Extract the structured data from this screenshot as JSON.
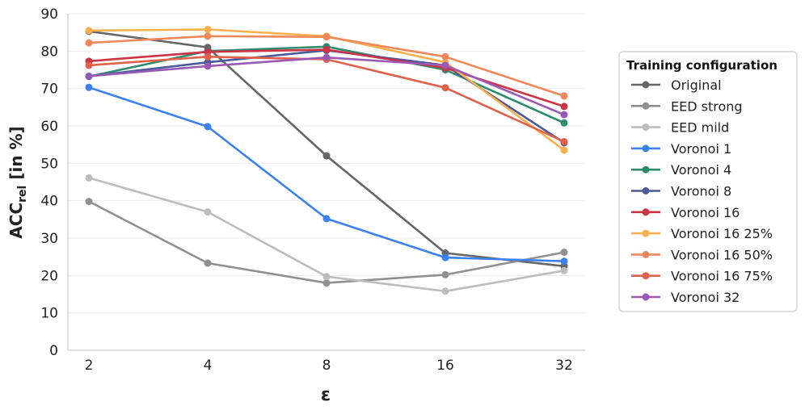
{
  "chart_data": {
    "type": "line",
    "x": [
      2,
      4,
      8,
      16,
      32
    ],
    "x_tick_labels": [
      "2",
      "4",
      "8",
      "16",
      "32"
    ],
    "x_scale": "log2",
    "xlabel": "ε",
    "ylabel_main": "ACC",
    "ylabel_sub": "rel",
    "ylabel_suffix": " [in %]",
    "ylim": [
      0,
      90
    ],
    "y_ticks": [
      0,
      10,
      20,
      30,
      40,
      50,
      60,
      70,
      80,
      90
    ],
    "grid": true,
    "legend_title": "Training configuration",
    "legend_position": "right",
    "series": [
      {
        "name": "Original",
        "color": "#666666",
        "values": [
          85.3,
          81.0,
          52.0,
          26.0,
          22.5
        ]
      },
      {
        "name": "EED strong",
        "color": "#909090",
        "values": [
          39.8,
          23.3,
          18.0,
          20.2,
          26.2
        ]
      },
      {
        "name": "EED mild",
        "color": "#bdbdbd",
        "values": [
          46.1,
          37.0,
          19.7,
          15.8,
          21.3
        ]
      },
      {
        "name": "Voronoi 1",
        "color": "#3b82f0",
        "values": [
          70.3,
          59.8,
          35.2,
          24.8,
          23.8
        ]
      },
      {
        "name": "Voronoi 4",
        "color": "#2e8b6e",
        "values": [
          73.2,
          80.0,
          81.2,
          75.0,
          60.8
        ]
      },
      {
        "name": "Voronoi 8",
        "color": "#4a5a9a",
        "values": [
          73.3,
          77.0,
          80.2,
          76.2,
          55.5
        ]
      },
      {
        "name": "Voronoi 16",
        "color": "#cc3344",
        "values": [
          77.3,
          79.8,
          80.4,
          75.5,
          65.2
        ]
      },
      {
        "name": "Voronoi 16 25%",
        "color": "#fbb050",
        "values": [
          85.5,
          85.8,
          84.0,
          77.0,
          53.5
        ]
      },
      {
        "name": "Voronoi 16 50%",
        "color": "#f0885a",
        "values": [
          82.2,
          84.0,
          83.8,
          78.5,
          68.0
        ]
      },
      {
        "name": "Voronoi 16 75%",
        "color": "#e0604a",
        "values": [
          76.2,
          78.5,
          77.8,
          70.2,
          55.8
        ]
      },
      {
        "name": "Voronoi 32",
        "color": "#9b59b6",
        "values": [
          73.3,
          76.0,
          78.3,
          76.2,
          63.0
        ]
      }
    ]
  }
}
